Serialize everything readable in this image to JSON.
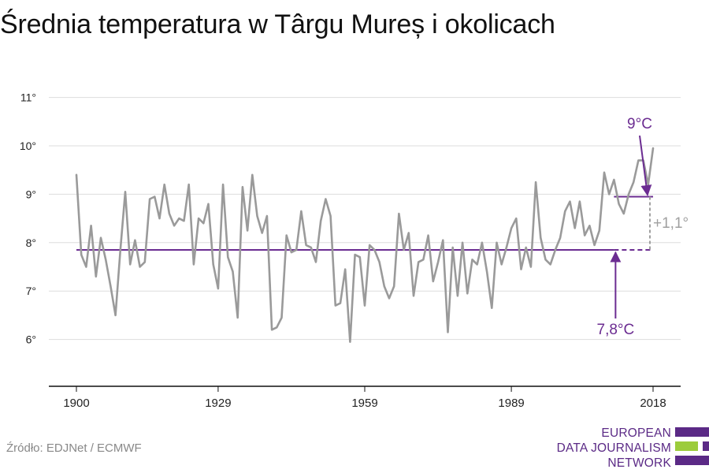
{
  "title": "Średnia temperatura w Târgu Mureș i okolicach",
  "source": "Źródło: EDJNet / ECMWF",
  "logo": {
    "lines": [
      "EUROPEAN",
      "DATA JOURNALISM",
      "NETWORK"
    ]
  },
  "colors": {
    "series": "#9a9a9a",
    "accent": "#6b2c91",
    "grid": "#dddddd",
    "axis": "#111111",
    "diff": "#a0a0a0"
  },
  "chart_data": {
    "type": "line",
    "title": "Średnia temperatura w Târgu Mureș i okolicach",
    "xlabel": "",
    "ylabel": "",
    "xlim": [
      1900,
      2018
    ],
    "ylim": [
      5,
      11
    ],
    "x_ticks": [
      1900,
      1929,
      1959,
      1989,
      2018
    ],
    "x_tick_labels": [
      "1900",
      "1929",
      "1959",
      "1989",
      "2018"
    ],
    "y_ticks": [
      6,
      7,
      8,
      9,
      10,
      11
    ],
    "y_tick_labels": [
      "6°",
      "7°",
      "8°",
      "9°",
      "10°",
      "11°"
    ],
    "grid": true,
    "series": [
      {
        "x": [
          1900,
          1901,
          1902,
          1903,
          1904,
          1905,
          1906,
          1907,
          1908,
          1909,
          1910,
          1911,
          1912,
          1913,
          1914,
          1915,
          1916,
          1917,
          1918,
          1919,
          1920,
          1921,
          1922,
          1923,
          1924,
          1925,
          1926,
          1927,
          1928,
          1929,
          1930,
          1931,
          1932,
          1933,
          1934,
          1935,
          1936,
          1937,
          1938,
          1939,
          1940,
          1941,
          1942,
          1943,
          1944,
          1945,
          1946,
          1947,
          1948,
          1949,
          1950,
          1951,
          1952,
          1953,
          1954,
          1955,
          1956,
          1957,
          1958,
          1959,
          1960,
          1961,
          1962,
          1963,
          1964,
          1965,
          1966,
          1967,
          1968,
          1969,
          1970,
          1971,
          1972,
          1973,
          1974,
          1975,
          1976,
          1977,
          1978,
          1979,
          1980,
          1981,
          1982,
          1983,
          1984,
          1985,
          1986,
          1987,
          1988,
          1989,
          1990,
          1991,
          1992,
          1993,
          1994,
          1995,
          1996,
          1997,
          1998,
          1999,
          2000,
          2001,
          2002,
          2003,
          2004,
          2005,
          2006,
          2007,
          2008,
          2009,
          2010,
          2011,
          2012,
          2013,
          2014,
          2015,
          2016,
          2017,
          2018
        ],
        "values": [
          9.4,
          7.75,
          7.5,
          8.35,
          7.3,
          8.1,
          7.65,
          7.1,
          6.5,
          7.85,
          9.05,
          7.55,
          8.05,
          7.5,
          7.6,
          8.9,
          8.95,
          8.5,
          9.2,
          8.6,
          8.35,
          8.5,
          8.45,
          9.2,
          7.55,
          8.5,
          8.4,
          8.8,
          7.55,
          7.05,
          9.2,
          7.7,
          7.4,
          6.45,
          9.15,
          8.25,
          9.4,
          8.55,
          8.2,
          8.55,
          6.2,
          6.25,
          6.45,
          8.15,
          7.8,
          7.85,
          8.65,
          7.95,
          7.9,
          7.6,
          8.45,
          8.9,
          8.55,
          6.7,
          6.75,
          7.45,
          5.95,
          7.75,
          7.7,
          6.7,
          7.95,
          7.85,
          7.6,
          7.1,
          6.85,
          7.1,
          8.6,
          7.85,
          8.2,
          6.9,
          7.6,
          7.65,
          8.15,
          7.2,
          7.6,
          8.05,
          6.15,
          7.9,
          6.9,
          8.0,
          6.95,
          7.65,
          7.55,
          8.0,
          7.4,
          6.65,
          8.0,
          7.55,
          7.9,
          8.3,
          8.5,
          7.45,
          7.9,
          7.5,
          9.25,
          8.1,
          7.65,
          7.55,
          7.85,
          8.1,
          8.65,
          8.85,
          8.3,
          8.85,
          8.15,
          8.35,
          7.95,
          8.25,
          9.45,
          9.0,
          9.3,
          8.8,
          8.6,
          9.0,
          9.25,
          9.7,
          9.7,
          9.2,
          9.95
        ]
      }
    ],
    "reference_lines": [
      {
        "label": "7,8°C",
        "value": 7.85,
        "x_from": 1900,
        "x_to": 2018,
        "solid_to": 2010
      },
      {
        "label": "9°C",
        "value": 8.95,
        "x_from": 2010,
        "x_to": 2018
      }
    ],
    "annotations": [
      {
        "label": "9°C",
        "points_to": [
          2018,
          8.95
        ]
      },
      {
        "label": "7,8°C",
        "points_to": [
          2010,
          7.85
        ]
      },
      {
        "label": "+1,1°",
        "between": [
          7.85,
          8.95
        ],
        "at_x": 2018
      }
    ]
  }
}
